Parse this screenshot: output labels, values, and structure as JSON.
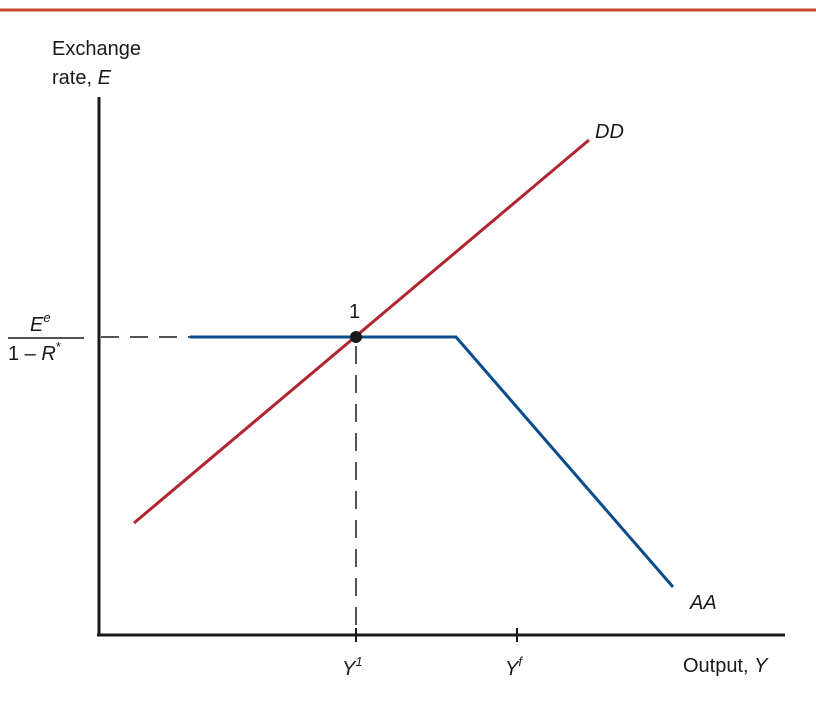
{
  "y_axis_label": {
    "line1": "Exchange",
    "line2_prefix": "rate, ",
    "line2_var": "E"
  },
  "x_axis_label": {
    "prefix": "Output, ",
    "var": "Y"
  },
  "curves": {
    "DD": {
      "label": "DD",
      "color": "#b0252f"
    },
    "AA": {
      "label": "AA",
      "color": "#0a4c8c"
    }
  },
  "equilibrium": {
    "label": "1"
  },
  "y_level_label": {
    "numerator_base": "E",
    "numerator_sup": "e",
    "denominator_prefix": "1 – ",
    "denominator_var": "R",
    "denominator_sup": "*"
  },
  "x_ticks": [
    {
      "base": "Y",
      "sup": "1"
    },
    {
      "base": "Y",
      "sup": "f"
    }
  ],
  "colors": {
    "top_rule": "#c8452e",
    "axis": "#1a1a1a",
    "marker": "#1a1a1a"
  }
}
